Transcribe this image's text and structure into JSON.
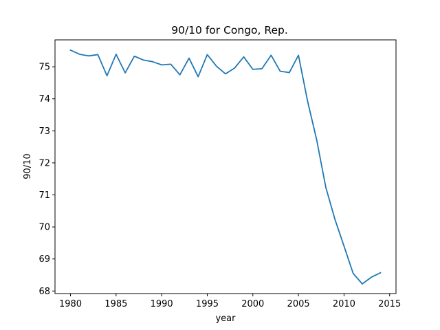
{
  "chart_data": {
    "type": "line",
    "title": "90/10 for Congo, Rep.",
    "xlabel": "year",
    "ylabel": "90/10",
    "xlim": [
      1978.3,
      2015.7
    ],
    "ylim": [
      67.92,
      75.84
    ],
    "xticks": [
      1980,
      1985,
      1990,
      1995,
      2000,
      2005,
      2010,
      2015
    ],
    "yticks": [
      68,
      69,
      70,
      71,
      72,
      73,
      74,
      75
    ],
    "grid": false,
    "legend": "none",
    "colors": {
      "line": "#1f77b4",
      "axes": "#000000",
      "background": "#ffffff"
    },
    "series": [
      {
        "x": [
          1980,
          1981,
          1982,
          1983,
          1984,
          1985,
          1986,
          1987,
          1988,
          1989,
          1990,
          1991,
          1992,
          1993,
          1994,
          1995,
          1996,
          1997,
          1998,
          1999,
          2000,
          2001,
          2002,
          2003,
          2004,
          2005,
          2006,
          2007,
          2008,
          2009,
          2010,
          2011,
          2012,
          2013,
          2014
        ],
        "y": [
          75.52,
          75.39,
          75.34,
          75.38,
          74.72,
          75.39,
          74.81,
          75.33,
          75.21,
          75.16,
          75.06,
          75.08,
          74.75,
          75.27,
          74.69,
          75.38,
          75.02,
          74.78,
          74.96,
          75.31,
          74.92,
          74.94,
          75.36,
          74.86,
          74.82,
          75.36,
          73.93,
          72.72,
          71.24,
          70.24,
          69.4,
          68.55,
          68.22,
          68.43,
          68.57
        ]
      }
    ]
  }
}
